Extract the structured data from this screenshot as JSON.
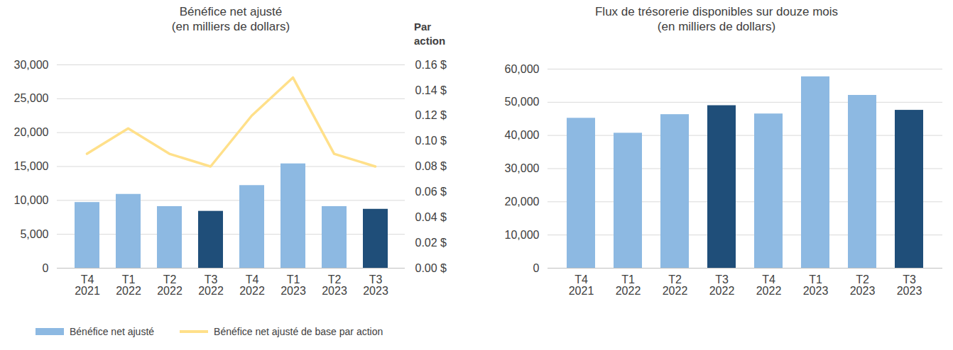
{
  "chart_data": [
    {
      "type": "bar",
      "title": "Bénéfice net ajusté",
      "subtitle": "(en milliers de dollars)",
      "categories": [
        "T4\n2021",
        "T1\n2022",
        "T2\n2022",
        "T3\n2022",
        "T4\n2022",
        "T1\n2023",
        "T2\n2023",
        "T3\n2023"
      ],
      "series": [
        {
          "name": "Bénéfice net ajusté",
          "type": "bar",
          "color": "#8DB9E2",
          "colors": [
            "#8DB9E2",
            "#8DB9E2",
            "#8DB9E2",
            "#1F4E79",
            "#8DB9E2",
            "#8DB9E2",
            "#8DB9E2",
            "#1F4E79"
          ],
          "values": [
            9700,
            10900,
            9100,
            8400,
            12200,
            15400,
            9100,
            8700
          ]
        },
        {
          "name": "Bénéfice net ajusté de base par action",
          "type": "line",
          "color": "#FFE08A",
          "axis": "y2",
          "values": [
            0.09,
            0.11,
            0.09,
            0.08,
            0.12,
            0.15,
            0.09,
            0.08
          ]
        }
      ],
      "ylim": [
        0,
        30000
      ],
      "yticks": [
        0,
        {
          "value": 5000,
          "label": "5,000"
        },
        {
          "value": 10000,
          "label": "10,000"
        },
        {
          "value": 15000,
          "label": "15,000"
        },
        {
          "value": 20000,
          "label": "20,000"
        },
        {
          "value": 25000,
          "label": "25,000"
        },
        {
          "value": 30000,
          "label": "30,000"
        }
      ],
      "y2label": "Par action",
      "y2lim": [
        0,
        0.16
      ],
      "y2ticks": [
        {
          "value": 0,
          "label": "0.00 $"
        },
        {
          "value": 0.02,
          "label": "0.02 $"
        },
        {
          "value": 0.04,
          "label": "0.04 $"
        },
        {
          "value": 0.06,
          "label": "0.06 $"
        },
        {
          "value": 0.08,
          "label": "0.08 $"
        },
        {
          "value": 0.1,
          "label": "0.10 $"
        },
        {
          "value": 0.12,
          "label": "0.12 $"
        },
        {
          "value": 0.14,
          "label": "0.14 $"
        },
        {
          "value": 0.16,
          "label": "0.16 $"
        }
      ],
      "grid": true,
      "legend": "bottom"
    },
    {
      "type": "bar",
      "title": "Flux de trésorerie disponibles sur douze mois",
      "subtitle": "(en milliers de dollars)",
      "categories": [
        "T4\n2021",
        "T1\n2022",
        "T2\n2022",
        "T3\n2022",
        "T4\n2022",
        "T1\n2023",
        "T2\n2023",
        "T3\n2023"
      ],
      "values": [
        45200,
        40700,
        46300,
        49000,
        46500,
        57700,
        52100,
        47600
      ],
      "color": "#8DB9E2",
      "colors": [
        "#8DB9E2",
        "#8DB9E2",
        "#8DB9E2",
        "#1F4E79",
        "#8DB9E2",
        "#8DB9E2",
        "#8DB9E2",
        "#1F4E79"
      ],
      "ylim": [
        0,
        60000
      ],
      "yticks": [
        0,
        {
          "value": 10000,
          "label": "10,000"
        },
        {
          "value": 20000,
          "label": "20,000"
        },
        {
          "value": 30000,
          "label": "30,000"
        },
        {
          "value": 40000,
          "label": "40,000"
        },
        {
          "value": 50000,
          "label": "50,000"
        },
        {
          "value": 60000,
          "label": "60,000"
        }
      ],
      "grid": true
    }
  ]
}
